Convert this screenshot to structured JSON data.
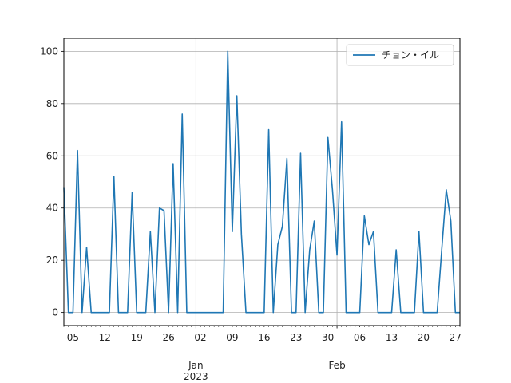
{
  "chart_data": {
    "type": "line",
    "series": [
      {
        "name": "チョン・イル",
        "color": "#1f77b4",
        "points": [
          [
            "2022-12-03",
            48
          ],
          [
            "2022-12-04",
            0
          ],
          [
            "2022-12-05",
            0
          ],
          [
            "2022-12-06",
            62
          ],
          [
            "2022-12-07",
            0
          ],
          [
            "2022-12-08",
            25
          ],
          [
            "2022-12-09",
            0
          ],
          [
            "2022-12-10",
            0
          ],
          [
            "2022-12-11",
            0
          ],
          [
            "2022-12-12",
            0
          ],
          [
            "2022-12-13",
            0
          ],
          [
            "2022-12-14",
            52
          ],
          [
            "2022-12-15",
            0
          ],
          [
            "2022-12-16",
            0
          ],
          [
            "2022-12-17",
            0
          ],
          [
            "2022-12-18",
            46
          ],
          [
            "2022-12-19",
            0
          ],
          [
            "2022-12-20",
            0
          ],
          [
            "2022-12-21",
            0
          ],
          [
            "2022-12-22",
            31
          ],
          [
            "2022-12-23",
            0
          ],
          [
            "2022-12-24",
            40
          ],
          [
            "2022-12-25",
            39
          ],
          [
            "2022-12-26",
            0
          ],
          [
            "2022-12-27",
            57
          ],
          [
            "2022-12-28",
            0
          ],
          [
            "2022-12-29",
            76
          ],
          [
            "2022-12-30",
            0
          ],
          [
            "2022-12-31",
            0
          ],
          [
            "2023-01-01",
            0
          ],
          [
            "2023-01-02",
            0
          ],
          [
            "2023-01-03",
            0
          ],
          [
            "2023-01-04",
            0
          ],
          [
            "2023-01-05",
            0
          ],
          [
            "2023-01-06",
            0
          ],
          [
            "2023-01-07",
            0
          ],
          [
            "2023-01-08",
            100
          ],
          [
            "2023-01-09",
            31
          ],
          [
            "2023-01-10",
            83
          ],
          [
            "2023-01-11",
            30
          ],
          [
            "2023-01-12",
            0
          ],
          [
            "2023-01-13",
            0
          ],
          [
            "2023-01-14",
            0
          ],
          [
            "2023-01-15",
            0
          ],
          [
            "2023-01-16",
            0
          ],
          [
            "2023-01-17",
            70
          ],
          [
            "2023-01-18",
            0
          ],
          [
            "2023-01-19",
            26
          ],
          [
            "2023-01-20",
            33
          ],
          [
            "2023-01-21",
            59
          ],
          [
            "2023-01-22",
            0
          ],
          [
            "2023-01-23",
            0
          ],
          [
            "2023-01-24",
            61
          ],
          [
            "2023-01-25",
            0
          ],
          [
            "2023-01-26",
            24
          ],
          [
            "2023-01-27",
            35
          ],
          [
            "2023-01-28",
            0
          ],
          [
            "2023-01-29",
            0
          ],
          [
            "2023-01-30",
            67
          ],
          [
            "2023-01-31",
            47
          ],
          [
            "2023-02-01",
            22
          ],
          [
            "2023-02-02",
            73
          ],
          [
            "2023-02-03",
            0
          ],
          [
            "2023-02-04",
            0
          ],
          [
            "2023-02-05",
            0
          ],
          [
            "2023-02-06",
            0
          ],
          [
            "2023-02-07",
            37
          ],
          [
            "2023-02-08",
            26
          ],
          [
            "2023-02-09",
            31
          ],
          [
            "2023-02-10",
            0
          ],
          [
            "2023-02-11",
            0
          ],
          [
            "2023-02-12",
            0
          ],
          [
            "2023-02-13",
            0
          ],
          [
            "2023-02-14",
            24
          ],
          [
            "2023-02-15",
            0
          ],
          [
            "2023-02-16",
            0
          ],
          [
            "2023-02-17",
            0
          ],
          [
            "2023-02-18",
            0
          ],
          [
            "2023-02-19",
            31
          ],
          [
            "2023-02-20",
            0
          ],
          [
            "2023-02-21",
            0
          ],
          [
            "2023-02-22",
            0
          ],
          [
            "2023-02-23",
            0
          ],
          [
            "2023-02-24",
            24
          ],
          [
            "2023-02-25",
            47
          ],
          [
            "2023-02-26",
            35
          ],
          [
            "2023-02-27",
            0
          ],
          [
            "2023-02-28",
            0
          ]
        ]
      }
    ],
    "xlim": [
      "2022-12-03",
      "2023-02-28"
    ],
    "ylim": [
      -5,
      105
    ],
    "y_ticks": [
      0,
      20,
      40,
      60,
      80,
      100
    ],
    "x_minor_ticks": [
      {
        "date": "2022-12-05",
        "label": "05"
      },
      {
        "date": "2022-12-12",
        "label": "12"
      },
      {
        "date": "2022-12-19",
        "label": "19"
      },
      {
        "date": "2022-12-26",
        "label": "26"
      },
      {
        "date": "2023-01-02",
        "label": "02"
      },
      {
        "date": "2023-01-09",
        "label": "09"
      },
      {
        "date": "2023-01-16",
        "label": "16"
      },
      {
        "date": "2023-01-23",
        "label": "23"
      },
      {
        "date": "2023-01-30",
        "label": "30"
      },
      {
        "date": "2023-02-06",
        "label": "06"
      },
      {
        "date": "2023-02-13",
        "label": "13"
      },
      {
        "date": "2023-02-20",
        "label": "20"
      },
      {
        "date": "2023-02-27",
        "label": "27"
      }
    ],
    "x_major_ticks": [
      {
        "date": "2023-01-01",
        "label": "Jan",
        "sublabel": "2023"
      },
      {
        "date": "2023-02-01",
        "label": "Feb",
        "sublabel": ""
      }
    ],
    "grid": true,
    "legend_position": "upper-right"
  }
}
